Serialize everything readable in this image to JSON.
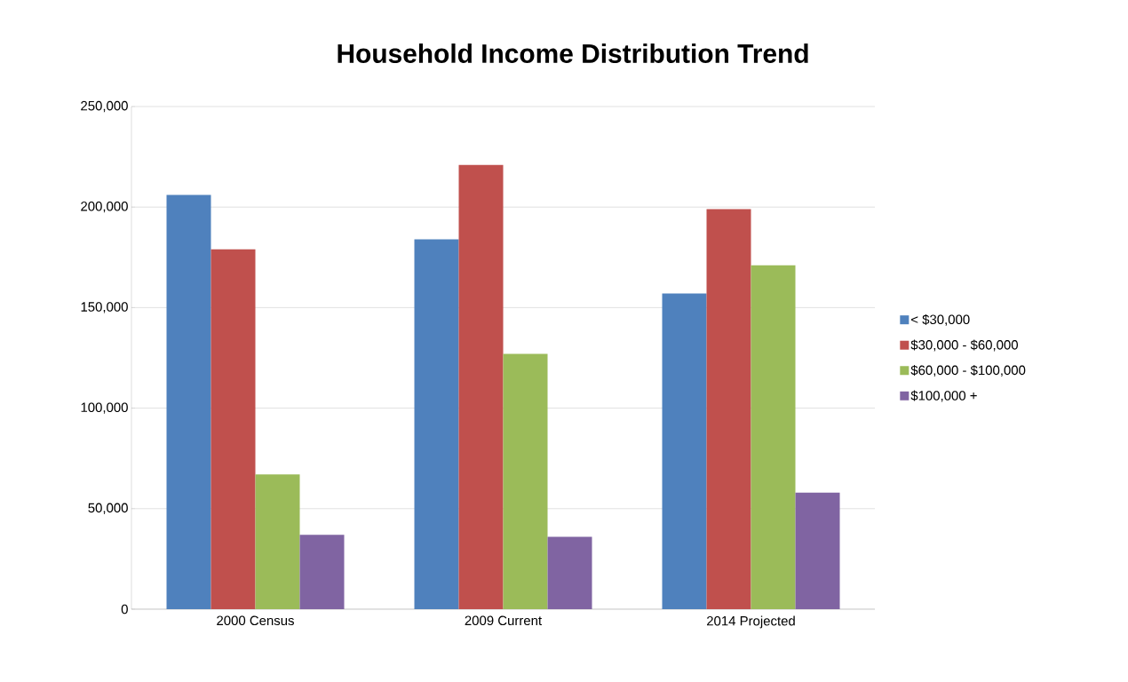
{
  "chart_data": {
    "type": "bar",
    "title": "Household Income Distribution Trend",
    "categories": [
      "2000 Census",
      "2009 Current",
      "2014 Projected"
    ],
    "series": [
      {
        "name": "< $30,000",
        "color": "#4f81bd",
        "values": [
          206000,
          184000,
          157000
        ]
      },
      {
        "name": "$30,000 - $60,000",
        "color": "#c0504d",
        "values": [
          179000,
          221000,
          199000
        ]
      },
      {
        "name": "$60,000 - $100,000",
        "color": "#9bbb59",
        "values": [
          67000,
          127000,
          171000
        ]
      },
      {
        "name": "$100,000 +",
        "color": "#8064a2",
        "values": [
          37000,
          36000,
          58000
        ]
      }
    ],
    "ylim": [
      0,
      250000
    ],
    "yticks": [
      {
        "value": 0,
        "label": "0"
      },
      {
        "value": 50000,
        "label": "50,000"
      },
      {
        "value": 100000,
        "label": "100,000"
      },
      {
        "value": 150000,
        "label": "150,000"
      },
      {
        "value": 200000,
        "label": "200,000"
      },
      {
        "value": 250000,
        "label": "250,000"
      }
    ],
    "grid": "y",
    "legend": "right"
  }
}
